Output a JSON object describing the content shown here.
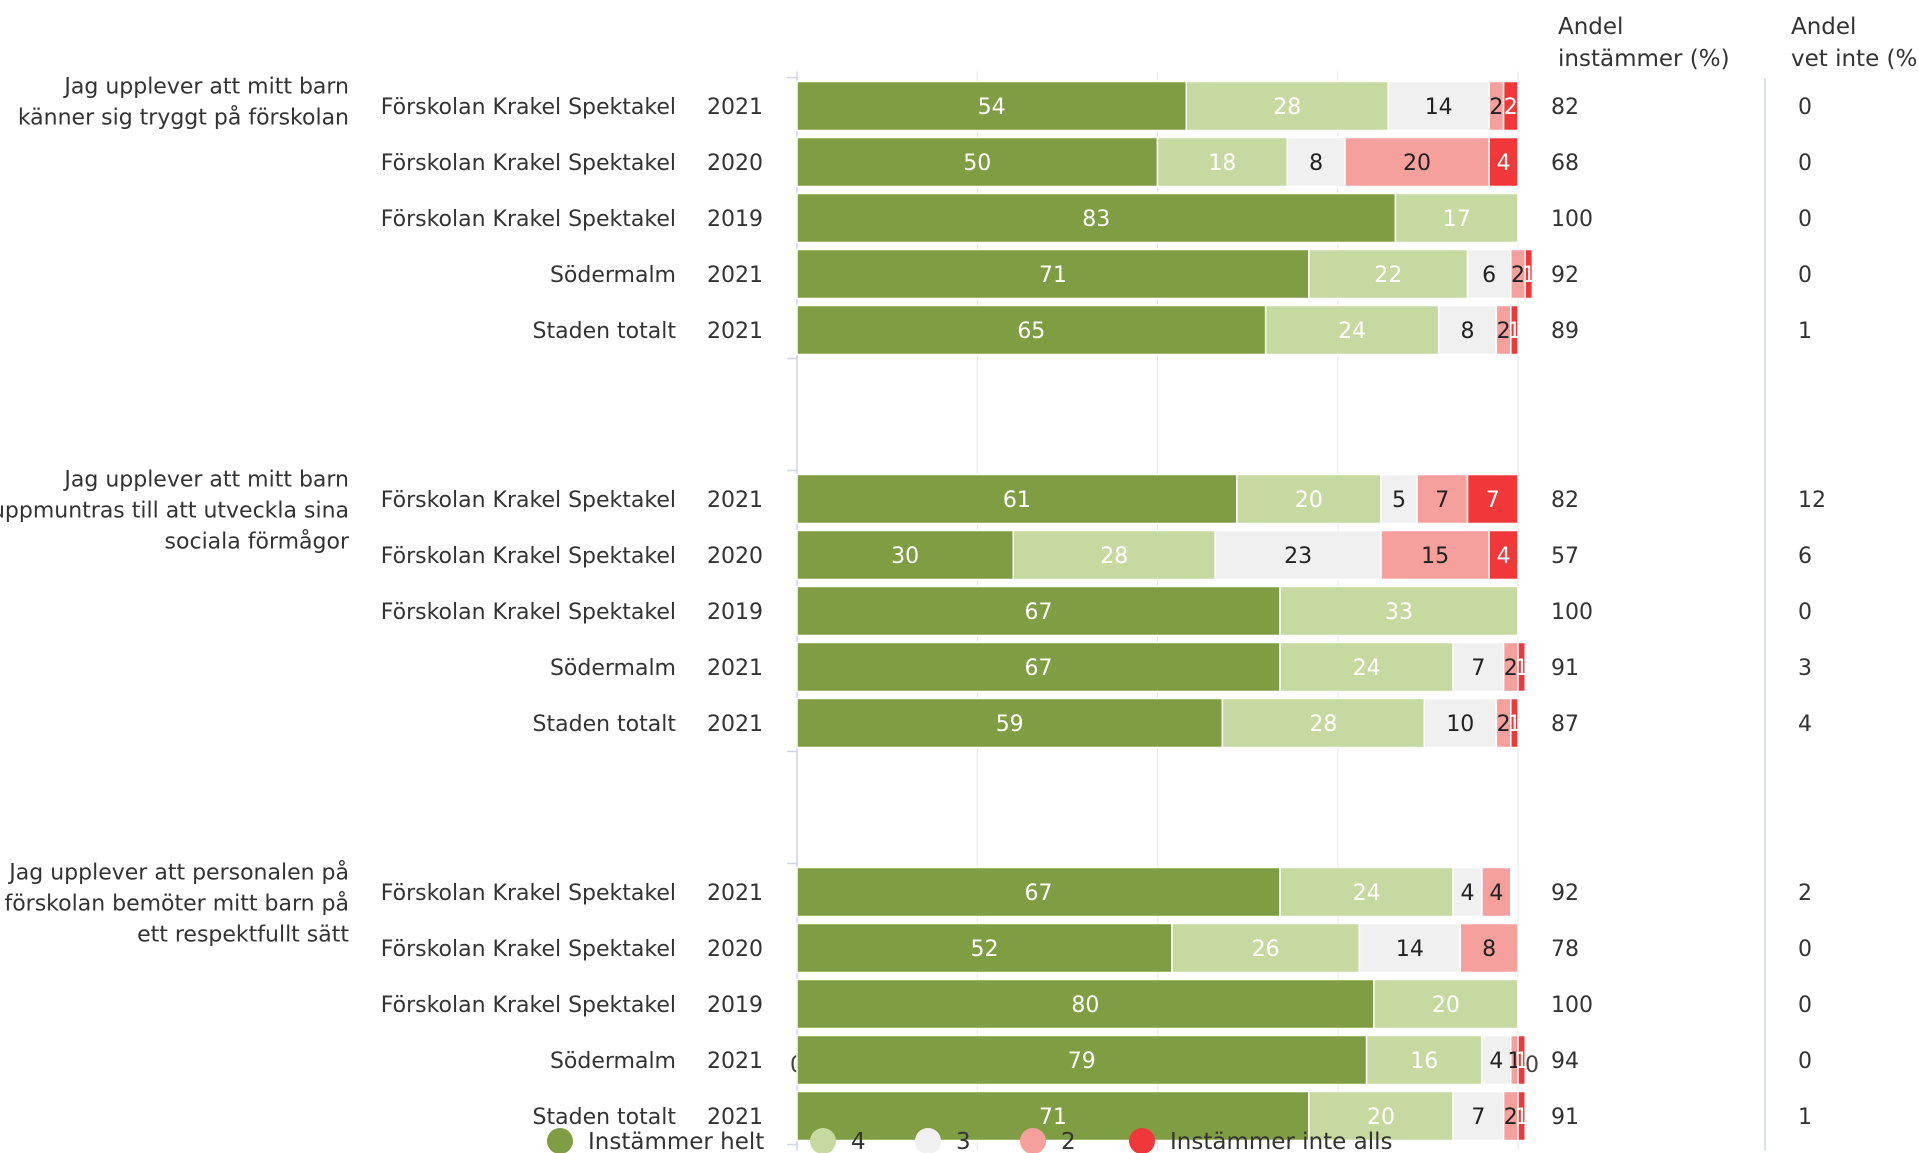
{
  "chart_data": {
    "type": "bar",
    "orientation": "horizontal",
    "stacked": true,
    "xlim": [
      0,
      100
    ],
    "x_ticks": [
      "0",
      "25",
      "50",
      "75",
      "100"
    ],
    "grid": true,
    "legend_position": "bottom",
    "header_agree": "Andel\ninstämmer (%)",
    "header_dontknow": "Andel\nvet inte (%)",
    "series": [
      {
        "name": "Instämmer helt",
        "color": "#7f9d43",
        "text_color": "#ffffff"
      },
      {
        "name": "4",
        "color": "#c6d9a0",
        "text_color": "#ffffff"
      },
      {
        "name": "3",
        "color": "#f0f0f0",
        "text_color": "#222222"
      },
      {
        "name": "2",
        "color": "#f6a09d",
        "text_color": "#222222"
      },
      {
        "name": "Instämmer inte alls",
        "color": "#f0383a",
        "text_color": "#ffffff"
      }
    ],
    "groups": [
      {
        "question": "Jag upplever att mitt barn\nkänner sig tryggt på förskolan",
        "rows": [
          {
            "label": "Förskolan Krakel Spektakel",
            "year": "2021",
            "values": [
              54,
              28,
              14,
              2,
              2
            ],
            "agree": "82",
            "dont_know": "0"
          },
          {
            "label": "Förskolan Krakel Spektakel",
            "year": "2020",
            "values": [
              50,
              18,
              8,
              20,
              4
            ],
            "agree": "68",
            "dont_know": "0"
          },
          {
            "label": "Förskolan Krakel Spektakel",
            "year": "2019",
            "values": [
              83,
              17,
              0,
              0,
              0
            ],
            "agree": "100",
            "dont_know": "0"
          },
          {
            "label": "Södermalm",
            "year": "2021",
            "values": [
              71,
              22,
              6,
              2,
              1
            ],
            "agree": "92",
            "dont_know": "0"
          },
          {
            "label": "Staden totalt",
            "year": "2021",
            "values": [
              65,
              24,
              8,
              2,
              1
            ],
            "agree": "89",
            "dont_know": "1"
          }
        ]
      },
      {
        "question": "Jag upplever att mitt barn\nuppmuntras till att utveckla sina\nsociala förmågor",
        "rows": [
          {
            "label": "Förskolan Krakel Spektakel",
            "year": "2021",
            "values": [
              61,
              20,
              5,
              7,
              7
            ],
            "agree": "82",
            "dont_know": "12"
          },
          {
            "label": "Förskolan Krakel Spektakel",
            "year": "2020",
            "values": [
              30,
              28,
              23,
              15,
              4
            ],
            "agree": "57",
            "dont_know": "6"
          },
          {
            "label": "Förskolan Krakel Spektakel",
            "year": "2019",
            "values": [
              67,
              33,
              0,
              0,
              0
            ],
            "agree": "100",
            "dont_know": "0"
          },
          {
            "label": "Södermalm",
            "year": "2021",
            "values": [
              67,
              24,
              7,
              2,
              1
            ],
            "agree": "91",
            "dont_know": "3"
          },
          {
            "label": "Staden totalt",
            "year": "2021",
            "values": [
              59,
              28,
              10,
              2,
              1
            ],
            "agree": "87",
            "dont_know": "4"
          }
        ]
      },
      {
        "question": "Jag upplever att personalen på\nförskolan bemöter mitt barn på\nett respektfullt sätt",
        "rows": [
          {
            "label": "Förskolan Krakel Spektakel",
            "year": "2021",
            "values": [
              67,
              24,
              4,
              4,
              0
            ],
            "agree": "92",
            "dont_know": "2"
          },
          {
            "label": "Förskolan Krakel Spektakel",
            "year": "2020",
            "values": [
              52,
              26,
              14,
              8,
              0
            ],
            "agree": "78",
            "dont_know": "0"
          },
          {
            "label": "Förskolan Krakel Spektakel",
            "year": "2019",
            "values": [
              80,
              20,
              0,
              0,
              0
            ],
            "agree": "100",
            "dont_know": "0"
          },
          {
            "label": "Södermalm",
            "year": "2021",
            "values": [
              79,
              16,
              4,
              1,
              1
            ],
            "agree": "94",
            "dont_know": "0"
          },
          {
            "label": "Staden totalt",
            "year": "2021",
            "values": [
              71,
              20,
              7,
              2,
              1
            ],
            "agree": "91",
            "dont_know": "1"
          }
        ]
      }
    ]
  }
}
